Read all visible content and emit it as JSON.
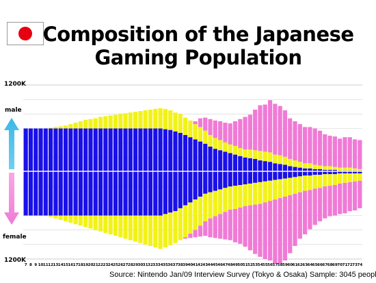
{
  "colors": {
    "blue": "#1a10e8",
    "yellow": "#f2f21a",
    "pink": "#f07ad6",
    "flag_red": "#e60012",
    "arrow_male": "#3ab8e8",
    "arrow_female": "#f07ad6"
  },
  "chart_data": {
    "type": "bar",
    "title": "Composition of the Japanese Gaming Population",
    "source": "Source:  Nintendo Jan/09  Interview Survey (Tokyo & Osaka) Sample: 3045 people",
    "y_top_label": "1200K",
    "y_bottom_label": "1200K",
    "male_label": "male",
    "female_label": "female",
    "ylim": [
      -1200,
      1200
    ],
    "grid": true,
    "categories": [
      "7",
      "8",
      "9",
      "10",
      "11",
      "12",
      "13",
      "14",
      "15",
      "16",
      "17",
      "18",
      "19",
      "20",
      "21",
      "22",
      "23",
      "24",
      "25",
      "26",
      "27",
      "28",
      "29",
      "30",
      "31",
      "32",
      "33",
      "34",
      "35",
      "36",
      "37",
      "38",
      "39",
      "40",
      "41",
      "42",
      "43",
      "44",
      "45",
      "46",
      "47",
      "48",
      "49",
      "50",
      "51",
      "52",
      "53",
      "54",
      "55",
      "56",
      "57",
      "58",
      "59",
      "60",
      "61",
      "62",
      "63",
      "64",
      "65",
      "66",
      "67",
      "68",
      "69",
      "70",
      "71",
      "72",
      "73",
      "74"
    ],
    "male": {
      "blue": [
        600,
        600,
        600,
        600,
        600,
        600,
        600,
        600,
        600,
        600,
        600,
        600,
        600,
        600,
        600,
        600,
        600,
        600,
        600,
        600,
        600,
        600,
        600,
        600,
        600,
        600,
        600,
        600,
        590,
        580,
        560,
        540,
        510,
        480,
        450,
        420,
        390,
        350,
        320,
        300,
        280,
        260,
        240,
        220,
        200,
        190,
        180,
        160,
        150,
        140,
        120,
        110,
        100,
        80,
        70,
        60,
        50,
        50,
        40,
        40,
        30,
        30,
        30,
        20,
        20,
        20,
        20,
        20
      ],
      "yellow": [
        0,
        0,
        0,
        0,
        0,
        10,
        20,
        30,
        40,
        60,
        80,
        100,
        120,
        130,
        140,
        160,
        170,
        180,
        190,
        200,
        210,
        220,
        230,
        240,
        250,
        260,
        270,
        280,
        280,
        270,
        260,
        260,
        240,
        230,
        210,
        200,
        180,
        160,
        150,
        140,
        130,
        120,
        120,
        110,
        110,
        120,
        120,
        130,
        130,
        130,
        120,
        120,
        110,
        100,
        90,
        80,
        70,
        70,
        60,
        50,
        50,
        50,
        40,
        40,
        40,
        40,
        30,
        20
      ],
      "pink": [
        0,
        0,
        0,
        0,
        0,
        0,
        0,
        0,
        0,
        0,
        0,
        0,
        0,
        0,
        0,
        0,
        0,
        0,
        0,
        0,
        0,
        0,
        0,
        0,
        0,
        0,
        0,
        0,
        0,
        0,
        0,
        0,
        0,
        0,
        40,
        120,
        180,
        220,
        240,
        260,
        270,
        290,
        340,
        400,
        450,
        480,
        560,
        630,
        650,
        720,
        700,
        680,
        640,
        560,
        540,
        520,
        500,
        500,
        500,
        480,
        440,
        420,
        420,
        400,
        420,
        420,
        400,
        400
      ]
    },
    "female": {
      "blue": [
        600,
        600,
        600,
        600,
        600,
        600,
        600,
        600,
        600,
        600,
        600,
        600,
        600,
        600,
        600,
        600,
        600,
        600,
        600,
        600,
        600,
        600,
        600,
        600,
        600,
        600,
        600,
        600,
        580,
        560,
        540,
        500,
        460,
        420,
        380,
        340,
        300,
        280,
        260,
        240,
        220,
        200,
        190,
        180,
        170,
        160,
        150,
        140,
        130,
        120,
        110,
        100,
        90,
        80,
        70,
        60,
        50,
        50,
        40,
        40,
        30,
        30,
        30,
        20,
        20,
        20,
        20,
        20
      ],
      "yellow": [
        0,
        0,
        0,
        0,
        0,
        20,
        40,
        60,
        80,
        100,
        120,
        140,
        160,
        180,
        200,
        220,
        240,
        260,
        280,
        300,
        320,
        340,
        360,
        380,
        400,
        420,
        440,
        460,
        460,
        450,
        440,
        440,
        440,
        430,
        420,
        400,
        380,
        360,
        350,
        340,
        330,
        320,
        320,
        310,
        300,
        300,
        300,
        300,
        290,
        280,
        270,
        260,
        250,
        240,
        230,
        220,
        210,
        200,
        190,
        180,
        170,
        160,
        150,
        140,
        130,
        120,
        110,
        100
      ],
      "pink": [
        0,
        0,
        0,
        0,
        0,
        0,
        0,
        0,
        0,
        0,
        0,
        0,
        0,
        0,
        0,
        0,
        0,
        0,
        0,
        0,
        0,
        0,
        0,
        0,
        0,
        0,
        0,
        0,
        0,
        0,
        0,
        0,
        20,
        60,
        100,
        150,
        200,
        260,
        300,
        340,
        380,
        420,
        460,
        500,
        560,
        620,
        680,
        730,
        780,
        820,
        880,
        900,
        880,
        800,
        720,
        640,
        600,
        540,
        500,
        460,
        440,
        420,
        420,
        420,
        420,
        400,
        400,
        380
      ]
    }
  }
}
